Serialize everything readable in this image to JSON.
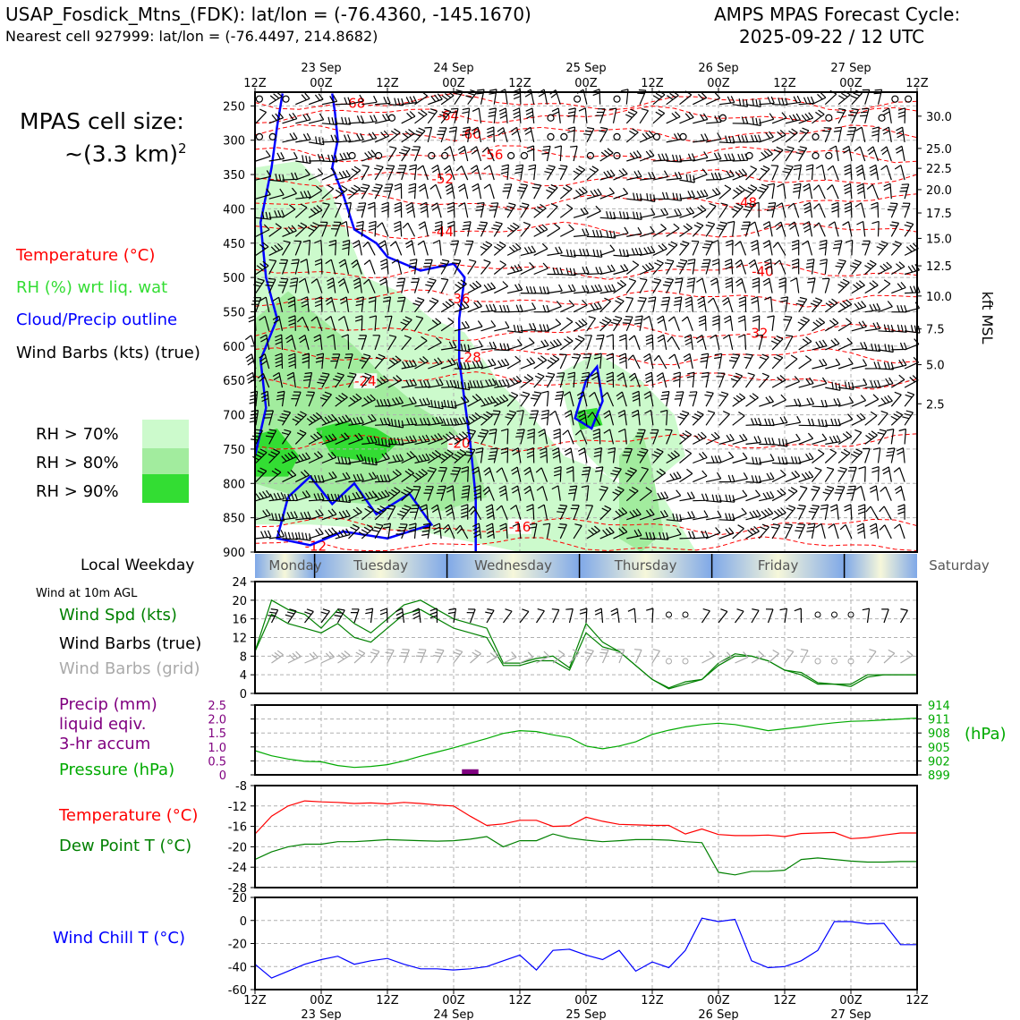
{
  "header": {
    "station": "USAP_Fosdick_Mtns_(FDK): lat/lon = (-76.4360, -145.1670)",
    "nearest_cell": "Nearest cell 927999: lat/lon = (-76.4497, 214.8682)",
    "cycle_title": "AMPS MPAS Forecast Cycle:",
    "cycle_date": "2025-09-22 / 12 UTC",
    "cell_size_label": "MPAS cell size:",
    "cell_size_value": "~(3.3 km)",
    "cell_size_exp": "2"
  },
  "legend": {
    "temperature": "Temperature (°C)",
    "rh": "RH (%) wrt liq. wat",
    "cloud": "Cloud/Precip outline",
    "wind": "Wind Barbs (kts) (true)",
    "rh70": "RH > 70%",
    "rh80": "RH > 80%",
    "rh90": "RH > 90%"
  },
  "panel_labels": {
    "local_weekday": "Local Weekday",
    "wind_10m": "Wind at 10m AGL",
    "wind_speed": "Wind Spd (kts)",
    "wind_barbs_true": "Wind Barbs (true)",
    "wind_barbs_grid": "Wind Barbs (grid)",
    "precip1": "Precip (mm)",
    "precip2": "liquid eqiv.",
    "precip3": "3-hr accum",
    "pressure": "Pressure (hPa)",
    "pressure_unit": "(hPa)",
    "temperature": "Temperature (°C)",
    "dewpoint": "Dew Point T (°C)",
    "windchill": "Wind Chill T (°C)",
    "kft_label": "kft MSL"
  },
  "colors": {
    "temperature": "#ff0000",
    "rh_label": "#33dd33",
    "rh70": "#ccfacc",
    "rh80": "#a2ec9e",
    "rh90": "#33dd33",
    "cloud": "#0000ff",
    "wind_speed": "#008000",
    "precip": "#800080",
    "pressure": "#00aa00",
    "dewpoint": "#008000",
    "windchill": "#0000ff",
    "grid": "#b0b0b0",
    "barb_grid": "#aaaaaa"
  },
  "chart_data": [
    {
      "type": "contour_timeseries",
      "time_ticks": [
        "12Z",
        "00Z",
        "12Z",
        "00Z",
        "12Z",
        "00Z",
        "12Z",
        "00Z",
        "12Z",
        "00Z",
        "12Z"
      ],
      "date_ticks": [
        "23 Sep",
        "24 Sep",
        "25 Sep",
        "26 Sep",
        "27 Sep"
      ],
      "time_range_hours": [
        0,
        120
      ],
      "pressure_ticks": [
        250,
        300,
        350,
        400,
        450,
        500,
        550,
        600,
        650,
        700,
        750,
        800,
        850,
        900
      ],
      "pressure_range_hpa": [
        230,
        900
      ],
      "kft_ticks": [
        {
          "p": 265,
          "label": "30.0"
        },
        {
          "p": 312,
          "label": "25.0"
        },
        {
          "p": 341,
          "label": "22.5"
        },
        {
          "p": 372,
          "label": "20.0"
        },
        {
          "p": 406,
          "label": "17.5"
        },
        {
          "p": 443,
          "label": "15.0"
        },
        {
          "p": 483,
          "label": "12.5"
        },
        {
          "p": 527,
          "label": "10.0"
        },
        {
          "p": 575,
          "label": "7.5"
        },
        {
          "p": 627,
          "label": "5.0"
        },
        {
          "p": 684,
          "label": "2.5"
        }
      ],
      "temperature_isotherms": [
        {
          "label": "-68",
          "p": 245,
          "label_hour": 18
        },
        {
          "label": "-64",
          "p": 263,
          "label_hour": 35
        },
        {
          "label": "-60",
          "p": 290,
          "label_hour": 39
        },
        {
          "label": "-56",
          "p": 320,
          "label_hour": 43
        },
        {
          "label": "-52",
          "p": 355,
          "label_hour": 34
        },
        {
          "label": "-48",
          "p": 390,
          "label_hour": 89
        },
        {
          "label": "-44",
          "p": 432,
          "label_hour": 34
        },
        {
          "label": "-40",
          "p": 490,
          "label_hour": 92
        },
        {
          "label": "-36",
          "p": 530,
          "label_hour": 37
        },
        {
          "label": "-32",
          "p": 580,
          "label_hour": 91
        },
        {
          "label": "-28",
          "p": 615,
          "label_hour": 39
        },
        {
          "label": "-24",
          "p": 650,
          "label_hour": 20
        },
        {
          "label": "-20",
          "p": 740,
          "label_hour": 37
        },
        {
          "label": "-16",
          "p": 862,
          "label_hour": 48
        },
        {
          "label": "-12",
          "p": 890,
          "label_hour": 11
        }
      ],
      "weekdays": [
        "Monday",
        "Tuesday",
        "Wednesday",
        "Thursday",
        "Friday",
        "Saturday"
      ]
    },
    {
      "type": "line",
      "name": "wind_speed",
      "hours": [
        0,
        3,
        6,
        9,
        12,
        15,
        18,
        21,
        24,
        27,
        30,
        33,
        36,
        39,
        42,
        45,
        48,
        51,
        54,
        57,
        60,
        63,
        66,
        69,
        72,
        75,
        78,
        81,
        84,
        87,
        90,
        93,
        96,
        99,
        102,
        105,
        108,
        111,
        114,
        117,
        120
      ],
      "values": [
        9,
        17,
        15,
        14,
        13,
        15,
        12,
        11,
        14,
        17,
        18,
        16,
        14,
        13,
        12,
        6,
        6,
        7,
        7,
        5,
        13,
        10,
        9,
        6,
        3,
        1,
        2,
        3,
        6,
        8,
        8,
        7,
        5,
        4,
        2,
        2,
        2,
        4,
        4,
        4,
        4
      ],
      "values_secondary": [
        9,
        20,
        18,
        17,
        14,
        18,
        15,
        13,
        16,
        19,
        20,
        18,
        16,
        15,
        14,
        6.5,
        6.5,
        7.5,
        8,
        5.5,
        15,
        11,
        9,
        6,
        3,
        1.2,
        2.5,
        3,
        6.5,
        8.5,
        8,
        7,
        5,
        4.5,
        2.3,
        2,
        1.5,
        3.5,
        4,
        4,
        4
      ],
      "ylim": [
        0,
        24
      ],
      "yticks": [
        "0",
        "4",
        "8",
        "12",
        "16",
        "20",
        "24"
      ]
    },
    {
      "type": "line",
      "name": "pressure",
      "hours": [
        0,
        3,
        6,
        9,
        12,
        15,
        18,
        21,
        24,
        27,
        30,
        33,
        36,
        39,
        42,
        45,
        48,
        51,
        54,
        57,
        60,
        63,
        66,
        69,
        72,
        75,
        78,
        81,
        84,
        87,
        90,
        93,
        96,
        99,
        102,
        105,
        108,
        111,
        114,
        117,
        120
      ],
      "values": [
        904.2,
        903.1,
        902.4,
        901.9,
        901.8,
        901.0,
        900.6,
        900.8,
        901.2,
        902.0,
        903.0,
        903.9,
        904.8,
        905.8,
        906.8,
        907.9,
        908.5,
        908.3,
        907.6,
        907.0,
        905.2,
        904.6,
        905.2,
        906.1,
        907.7,
        908.6,
        909.3,
        909.8,
        910.1,
        909.8,
        909.2,
        908.5,
        908.9,
        909.3,
        909.8,
        910.2,
        910.5,
        910.6,
        910.8,
        911.0,
        911.2
      ],
      "yticks_right": [
        "914",
        "911",
        "908",
        "905",
        "902",
        "899"
      ],
      "ylim_pressure": [
        899,
        914
      ],
      "precip_ticks": [
        "2.5",
        "2.0",
        "1.5",
        "1.0",
        "0.5",
        "0"
      ],
      "precip_range_mm": [
        0,
        2.5
      ],
      "precip_bars": [
        {
          "hour": 39,
          "value": 0.2
        }
      ]
    },
    {
      "type": "line",
      "name": "temperature_dewpoint",
      "hours": [
        0,
        3,
        6,
        9,
        12,
        15,
        18,
        21,
        24,
        27,
        30,
        33,
        36,
        39,
        42,
        45,
        48,
        51,
        54,
        57,
        60,
        63,
        66,
        69,
        72,
        75,
        78,
        81,
        84,
        87,
        90,
        93,
        96,
        99,
        102,
        105,
        108,
        111,
        114,
        117,
        120
      ],
      "temperature": [
        -17.5,
        -14,
        -12,
        -11,
        -11.2,
        -11.3,
        -11.5,
        -11.4,
        -11.6,
        -11.3,
        -11.5,
        -11.8,
        -12,
        -14,
        -15.8,
        -15.5,
        -14.8,
        -14.8,
        -16,
        -15.9,
        -14.2,
        -15,
        -15.6,
        -15.7,
        -15.8,
        -15.8,
        -17.5,
        -16.5,
        -17.6,
        -17.8,
        -17.8,
        -17.7,
        -18,
        -17.4,
        -17.3,
        -17.2,
        -18.4,
        -18.2,
        -17.7,
        -17.3,
        -17.3
      ],
      "dewpoint": [
        -22.5,
        -21,
        -20,
        -19.5,
        -19.5,
        -19,
        -19,
        -18.8,
        -18.6,
        -18.7,
        -18.8,
        -18.9,
        -18.8,
        -18.5,
        -18,
        -20,
        -18.8,
        -18.8,
        -17.5,
        -18.3,
        -18.7,
        -19,
        -18.8,
        -18.6,
        -18.6,
        -18.7,
        -19,
        -19.2,
        -25,
        -25.5,
        -24.8,
        -24.8,
        -24.6,
        -22.5,
        -22.2,
        -22.5,
        -22.8,
        -23,
        -23,
        -22.9,
        -22.9
      ],
      "ylim": [
        -28,
        -8
      ],
      "yticks": [
        "-8",
        "-12",
        "-16",
        "-20",
        "-24",
        "-28"
      ]
    },
    {
      "type": "line",
      "name": "wind_chill",
      "hours": [
        0,
        3,
        6,
        9,
        12,
        15,
        18,
        21,
        24,
        27,
        30,
        33,
        36,
        39,
        42,
        45,
        48,
        51,
        54,
        57,
        60,
        63,
        66,
        69,
        72,
        75,
        78,
        81,
        84,
        87,
        90,
        93,
        96,
        99,
        102,
        105,
        108,
        111,
        114,
        117,
        120
      ],
      "values": [
        -38,
        -50,
        -44,
        -38,
        -34,
        -31,
        -38,
        -35,
        -33,
        -38,
        -42,
        -42,
        -43,
        -42,
        -40,
        -35,
        -30,
        -43,
        -26,
        -25,
        -30,
        -34,
        -26,
        -44,
        -36,
        -41,
        -26,
        2,
        -1,
        1,
        -35,
        -41,
        -40,
        -35,
        -26,
        -1,
        -1,
        -3,
        -2.5,
        -21,
        -21
      ],
      "ylim": [
        -60,
        20
      ],
      "yticks": [
        "20",
        "0",
        "-20",
        "-40",
        "-60"
      ]
    }
  ]
}
